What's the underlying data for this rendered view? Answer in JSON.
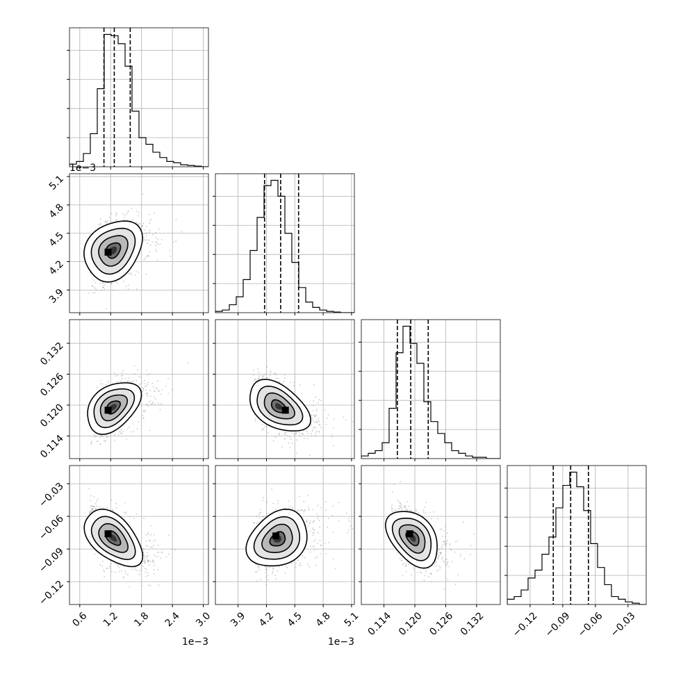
{
  "chart_data": {
    "type": "corner",
    "description_free": true,
    "parameters": [
      {
        "index": 0,
        "range": [
          0.0004,
          0.0031
        ],
        "ticks": [
          0.0006,
          0.0012,
          0.0018,
          0.0024,
          0.003
        ],
        "tick_labels": [
          "0.6",
          "1.2",
          "1.8",
          "2.4",
          "3.0"
        ],
        "offset_label": "1e−3",
        "quantiles": [
          0.00107,
          0.00127,
          0.00158
        ]
      },
      {
        "index": 1,
        "range": [
          0.00366,
          0.00513
        ],
        "ticks": [
          0.0039,
          0.0042,
          0.0045,
          0.0048,
          0.0051
        ],
        "tick_labels": [
          "3.9",
          "4.2",
          "4.5",
          "4.8",
          "5.1"
        ],
        "offset_label": "1e−3",
        "quantiles": [
          0.00418,
          0.00435,
          0.00454
        ]
      },
      {
        "index": 2,
        "range": [
          0.1096,
          0.1366
        ],
        "ticks": [
          0.114,
          0.12,
          0.126,
          0.132
        ],
        "tick_labels": [
          "0.114",
          "0.120",
          "0.126",
          "0.132"
        ],
        "offset_label": "",
        "quantiles": [
          0.1166,
          0.1192,
          0.1226
        ]
      },
      {
        "index": 3,
        "range": [
          -0.141,
          -0.0133
        ],
        "ticks": [
          -0.12,
          -0.09,
          -0.06,
          -0.03
        ],
        "tick_labels": [
          "−0.12",
          "−0.09",
          "−0.06",
          "−0.03"
        ],
        "offset_label": "",
        "quantiles": [
          -0.0987,
          -0.0827,
          -0.0664
        ]
      }
    ],
    "histograms": [
      [
        0.02,
        0.04,
        0.1,
        0.25,
        0.59,
        1.0,
        0.99,
        0.93,
        0.76,
        0.42,
        0.22,
        0.17,
        0.11,
        0.07,
        0.04,
        0.03,
        0.015,
        0.01,
        0.005,
        0.0
      ],
      [
        0.01,
        0.02,
        0.06,
        0.12,
        0.25,
        0.47,
        0.72,
        0.96,
        1.0,
        0.88,
        0.6,
        0.38,
        0.19,
        0.08,
        0.04,
        0.02,
        0.01,
        0.005,
        0.0,
        0.0
      ],
      [
        0.02,
        0.04,
        0.06,
        0.12,
        0.38,
        0.8,
        1.0,
        0.87,
        0.72,
        0.43,
        0.28,
        0.19,
        0.12,
        0.06,
        0.04,
        0.02,
        0.01,
        0.01,
        0.0,
        0.0
      ],
      [
        0.04,
        0.06,
        0.11,
        0.2,
        0.26,
        0.38,
        0.51,
        0.73,
        0.9,
        1.0,
        0.89,
        0.71,
        0.46,
        0.28,
        0.15,
        0.06,
        0.04,
        0.02,
        0.01,
        0.0
      ]
    ],
    "pairs": [
      {
        "x": 0,
        "y": 1,
        "mean": [
          0.00125,
          0.00432
        ],
        "sd": [
          0.00028,
          0.00016
        ],
        "rho": 0.25,
        "mode": [
          0.00115,
          0.0043
        ],
        "contours": [
          {
            "rx": 0.7,
            "ry": 0.7
          },
          {
            "rx": 1.4,
            "ry": 1.4
          },
          {
            "rx": 2.1,
            "ry": 2.1
          }
        ]
      },
      {
        "x": 0,
        "y": 2,
        "mean": [
          0.00125,
          0.1196
        ],
        "sd": [
          0.00026,
          0.0025
        ],
        "rho": 0.4,
        "mode": [
          0.00115,
          0.119
        ]
      },
      {
        "x": 1,
        "y": 2,
        "mean": [
          0.00433,
          0.1197
        ],
        "sd": [
          0.00016,
          0.0025
        ],
        "rho": -0.45,
        "mode": [
          0.0044,
          0.119
        ]
      },
      {
        "x": 0,
        "y": 3,
        "mean": [
          0.00125,
          -0.08
        ],
        "sd": [
          0.00028,
          0.013
        ],
        "rho": -0.5,
        "mode": [
          0.00115,
          -0.076
        ]
      },
      {
        "x": 1,
        "y": 3,
        "mean": [
          0.00432,
          -0.081
        ],
        "sd": [
          0.00016,
          0.013
        ],
        "rho": 0.25,
        "mode": [
          0.0043,
          -0.078
        ]
      },
      {
        "x": 2,
        "y": 3,
        "mean": [
          0.1196,
          -0.08
        ],
        "sd": [
          0.0025,
          0.013
        ],
        "rho": -0.4,
        "mode": [
          0.119,
          -0.076
        ]
      }
    ],
    "grid": true,
    "contour_levels_sigma": [
      0.5,
      1.0,
      1.5,
      2.0
    ]
  }
}
